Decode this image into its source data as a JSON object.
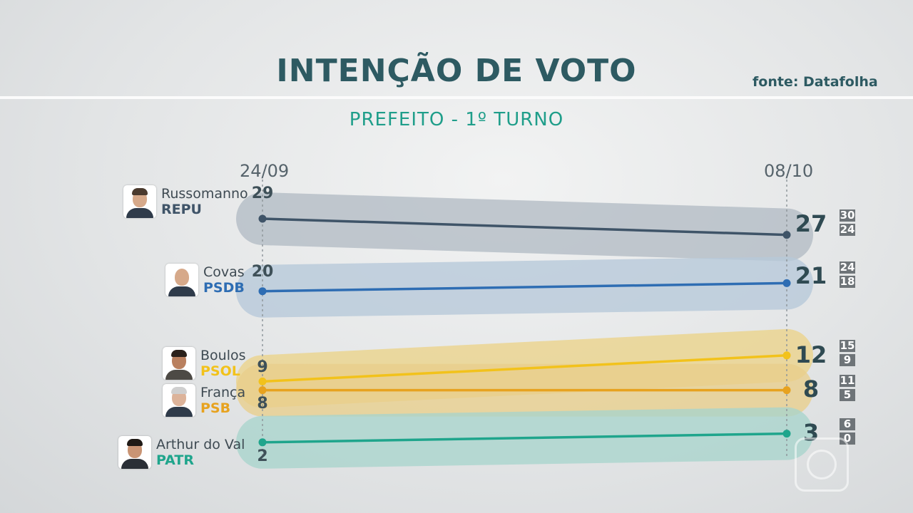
{
  "header": {
    "title": "INTENÇÃO DE VOTO",
    "source": "fonte: Datafolha",
    "subtitle": "PREFEITO - 1º TURNO"
  },
  "chart_data": {
    "type": "line",
    "x": [
      "24/09",
      "08/10"
    ],
    "series": [
      {
        "name": "Russomanno",
        "party": "REPU",
        "values": [
          29,
          27
        ],
        "range_high": "30",
        "range_low": "24",
        "color": "#3f5468",
        "band": "#b3bcc5"
      },
      {
        "name": "Covas",
        "party": "PSDB",
        "values": [
          20,
          21
        ],
        "range_high": "24",
        "range_low": "18",
        "color": "#2e6db3",
        "band": "#b7c9da"
      },
      {
        "name": "Boulos",
        "party": "PSOL",
        "values": [
          9,
          12
        ],
        "range_high": "15",
        "range_low": "9",
        "color": "#f2c21b",
        "band": "#ecd48a"
      },
      {
        "name": "França",
        "party": "PSB",
        "values": [
          8,
          8
        ],
        "range_high": "11",
        "range_low": "5",
        "color": "#e7a21f",
        "band": "#e9cf8c"
      },
      {
        "name": "Arthur do Val",
        "party": "PATR",
        "values": [
          2,
          3
        ],
        "range_high": "6",
        "range_low": "0",
        "color": "#1fa58c",
        "band": "#a9d5cd"
      }
    ]
  },
  "candidates": [
    {
      "name": "Russomanno",
      "party": "REPU",
      "party_color": "#3f5468"
    },
    {
      "name": "Covas",
      "party": "PSDB",
      "party_color": "#2e6db3"
    },
    {
      "name": "Boulos",
      "party": "PSOL",
      "party_color": "#f2c21b"
    },
    {
      "name": "França",
      "party": "PSB",
      "party_color": "#e7a21f"
    },
    {
      "name": "Arthur do Val",
      "party": "PATR",
      "party_color": "#1fa58c"
    }
  ],
  "ranges": [
    {
      "high": "30",
      "low": "24"
    },
    {
      "high": "24",
      "low": "18"
    },
    {
      "high": "15",
      "low": "9"
    },
    {
      "high": "11",
      "low": "5"
    },
    {
      "high": "6",
      "low": "0"
    }
  ]
}
